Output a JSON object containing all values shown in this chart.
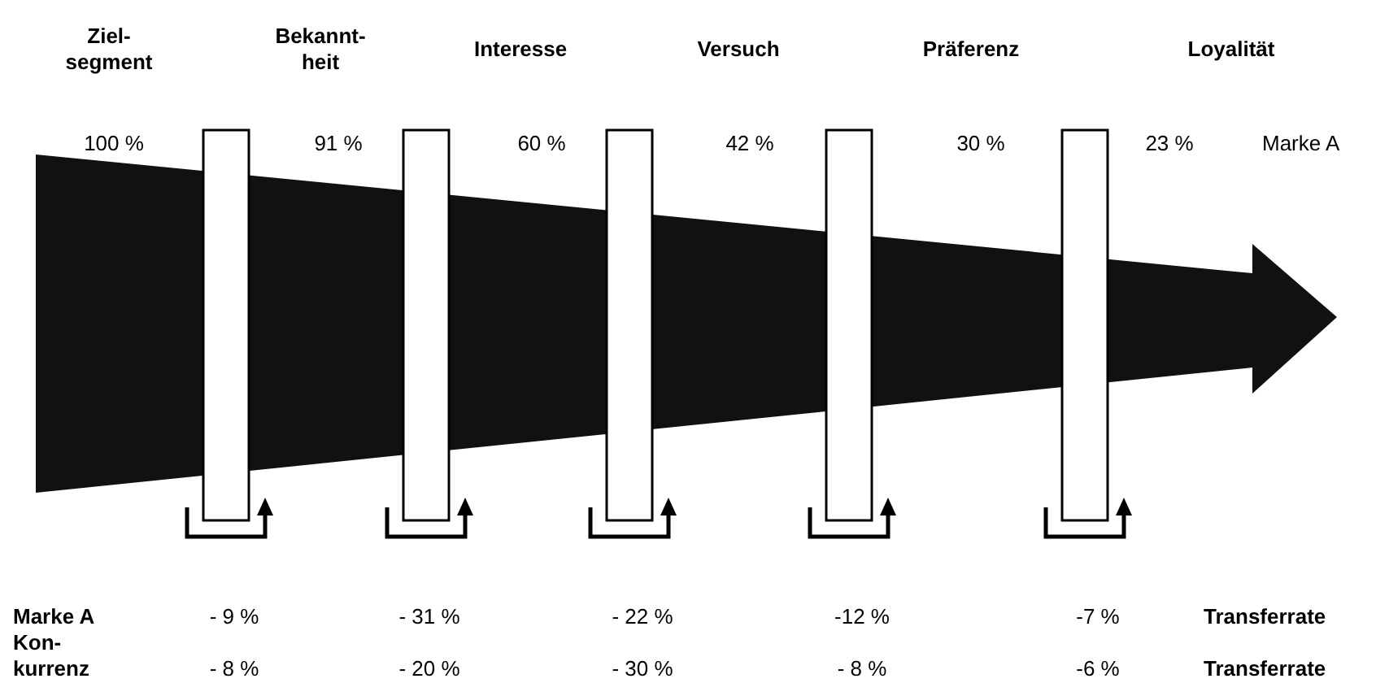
{
  "chart_data": {
    "type": "other",
    "categories": [
      "Ziel-\nsegment",
      "Bekannt-\nheit",
      "Interesse",
      "Versuch",
      "Präferenz",
      "Loyalität"
    ],
    "series": [
      {
        "name": "Marke A",
        "color": "#111111",
        "values": [
          100,
          91,
          60,
          42,
          30,
          23
        ],
        "value_labels": [
          "100 %",
          "91 %",
          "60 %",
          "42 %",
          "30 %",
          "23 %"
        ]
      },
      {
        "name": "Marke A",
        "values": [
          -9,
          -31,
          -22,
          -12,
          -7,
          null
        ],
        "value_labels": [
          "- 9 %",
          "- 31 %",
          "- 22 %",
          "-12 %",
          "-7 %",
          null
        ]
      },
      {
        "name": "Kon-\nkurrenz",
        "values": [
          -8,
          -20,
          -30,
          -8,
          -6,
          null
        ],
        "value_labels": [
          "- 8 %",
          "- 20 %",
          "- 30 %",
          "- 8 %",
          "-6 %",
          null
        ]
      }
    ],
    "annotations": [
      "Transferrate",
      "Transferrate"
    ]
  }
}
